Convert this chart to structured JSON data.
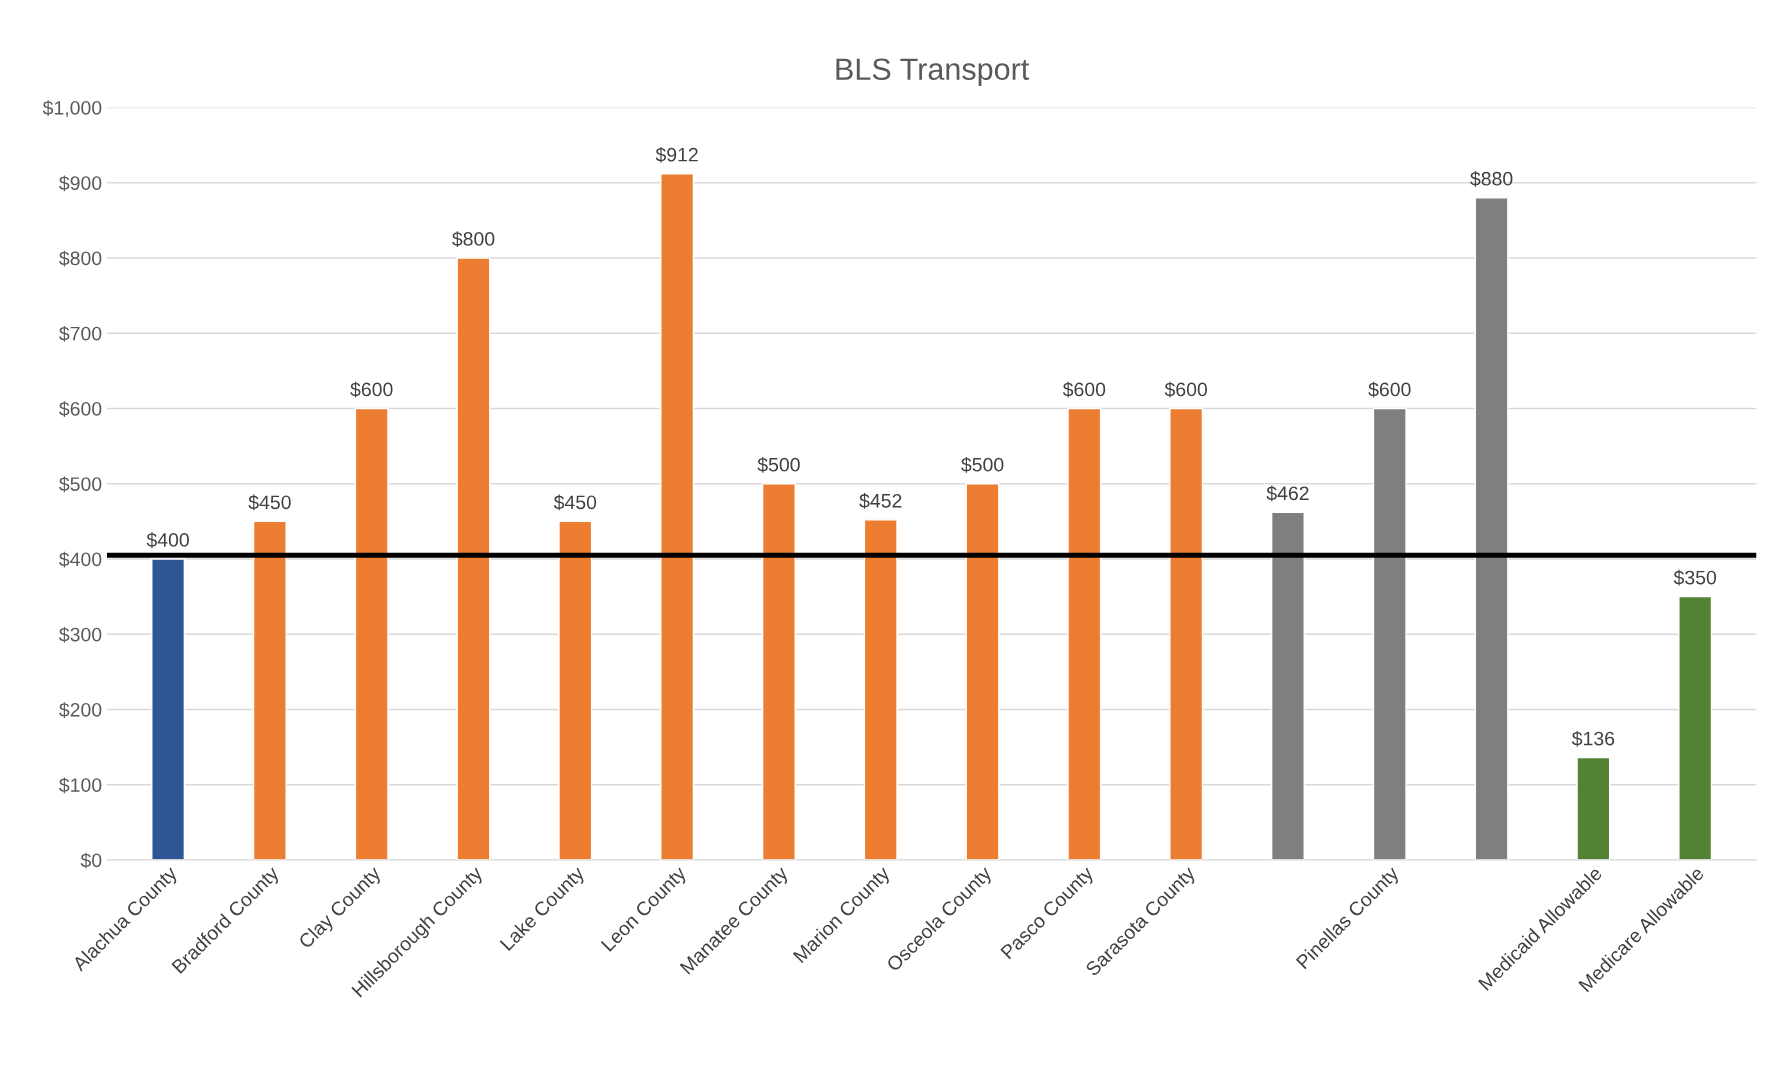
{
  "chart_data": {
    "type": "bar",
    "title": "BLS Transport",
    "categories": [
      "Alachua County",
      "Bradford County",
      "Clay County",
      "Hillsborough County",
      "Lake County",
      "Leon County",
      "Manatee County",
      "Marion County",
      "Osceola County",
      "Pasco County",
      "Sarasota County",
      null,
      "Pinellas County",
      null,
      "Medicaid Allowable",
      "Medicare Allowable"
    ],
    "values": [
      400,
      450,
      600,
      800,
      450,
      912,
      500,
      452,
      500,
      600,
      600,
      462,
      600,
      880,
      136,
      350
    ],
    "colors": [
      "#2f5597",
      "#ed7d31",
      "#ed7d31",
      "#ed7d31",
      "#ed7d31",
      "#ed7d31",
      "#ed7d31",
      "#ed7d31",
      "#ed7d31",
      "#ed7d31",
      "#ed7d31",
      "#7f7f7f",
      "#7f7f7f",
      "#7f7f7f",
      "#548235",
      "#548235"
    ],
    "value_labels": [
      "$400",
      "$450",
      "$600",
      "$800",
      "$450",
      "$912",
      "$500",
      "$452",
      "$500",
      "$600",
      "$600",
      "$462",
      "$600",
      "$880",
      "$136",
      "$350"
    ],
    "ylim": [
      0,
      1000
    ],
    "yticks": [
      {
        "value": 0,
        "label": "$0"
      },
      {
        "value": 100,
        "label": "$100"
      },
      {
        "value": 200,
        "label": "$200"
      },
      {
        "value": 300,
        "label": "$300"
      },
      {
        "value": 400,
        "label": "$400"
      },
      {
        "value": 500,
        "label": "$500"
      },
      {
        "value": 600,
        "label": "$600"
      },
      {
        "value": 700,
        "label": "$700"
      },
      {
        "value": 800,
        "label": "$800"
      },
      {
        "value": 900,
        "label": "$900"
      },
      {
        "value": 1000,
        "label": "$1,000"
      }
    ],
    "grid": "y",
    "ref_lines": [
      {
        "axis": "y",
        "value": 405,
        "color": "#000000"
      }
    ]
  }
}
